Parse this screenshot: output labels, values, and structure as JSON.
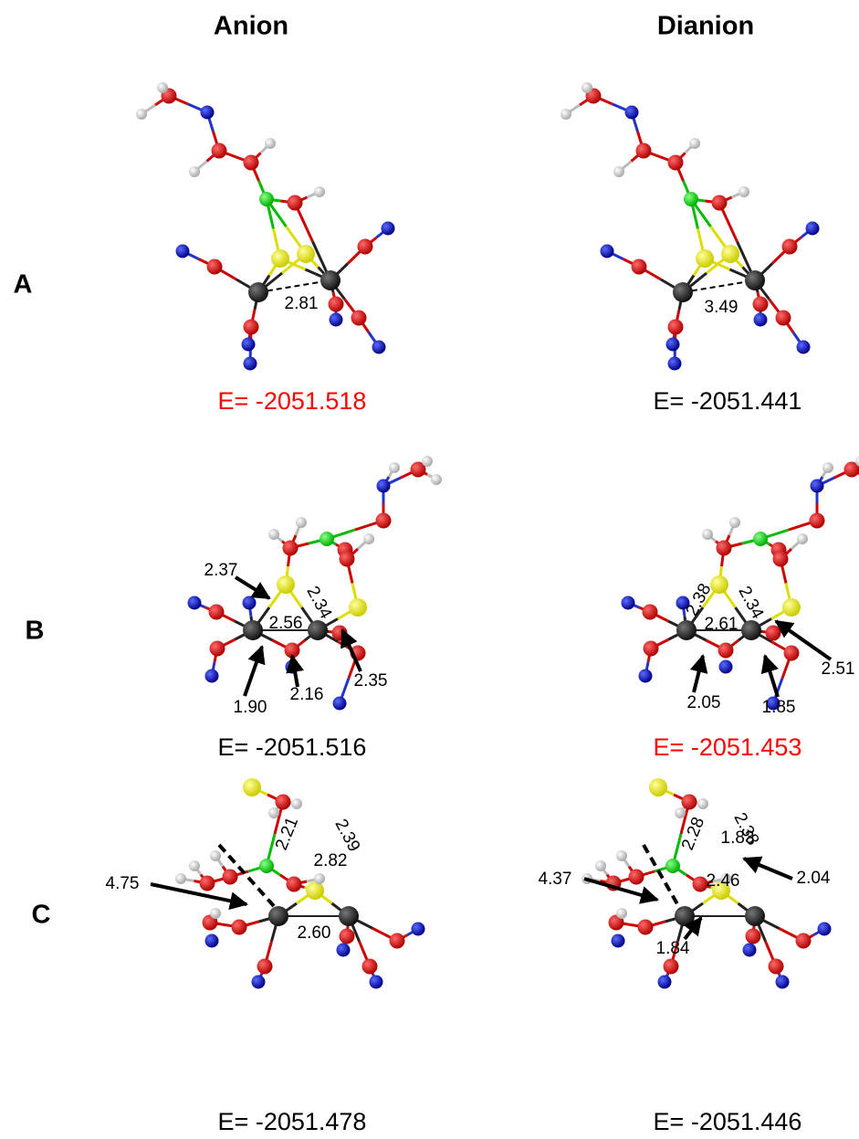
{
  "columns": [
    "Anion",
    "Dianion"
  ],
  "rows": [
    {
      "label": "A",
      "panels": [
        {
          "energy": "E= -2051.518",
          "energy_color": "#ff0000",
          "distances": [
            "2.81"
          ]
        },
        {
          "energy": "E= -2051.441",
          "energy_color": "#000000",
          "distances": [
            "3.49"
          ]
        }
      ]
    },
    {
      "label": "B",
      "panels": [
        {
          "energy": "E= -2051.516",
          "energy_color": "#000000",
          "distances": [
            "2.37",
            "2.56",
            "2.34",
            "1.90",
            "2.16",
            "2.35"
          ]
        },
        {
          "energy": "E= -2051.453",
          "energy_color": "#ff0000",
          "distances": [
            "2.38",
            "2.61",
            "2.34",
            "2.05",
            "1.85",
            "2.51"
          ]
        }
      ]
    },
    {
      "label": "C",
      "panels": [
        {
          "energy": "E= -2051.478",
          "energy_color": "#000000",
          "distances": [
            "2.82",
            "4.75",
            "2.21",
            "2.39",
            "2.60"
          ]
        },
        {
          "energy": "E= -2051.446",
          "energy_color": "#000000",
          "distances": [
            "1.83",
            "4.37",
            "2.28",
            "2.38",
            "2.46",
            "2.04",
            "1.84"
          ]
        }
      ]
    }
  ]
}
